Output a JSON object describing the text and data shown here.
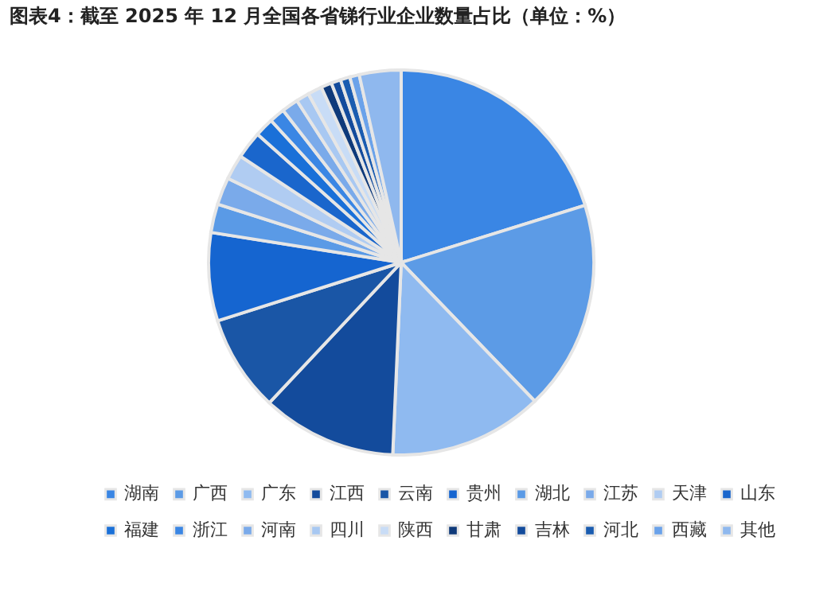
{
  "chart_data": {
    "type": "pie",
    "title": "图表4：截至 2025 年 12 月全国各省锑行业企业数量占比（单位：%）",
    "categories": [
      "湖南",
      "广西",
      "广东",
      "江西",
      "云南",
      "贵州",
      "湖北",
      "江苏",
      "天津",
      "山东",
      "福建",
      "浙江",
      "河南",
      "四川",
      "陕西",
      "甘肃",
      "吉林",
      "河北",
      "西藏",
      "其他"
    ],
    "values": [
      20.2,
      17.6,
      12.9,
      11.3,
      8.1,
      7.4,
      2.4,
      2.3,
      2.1,
      2.3,
      1.6,
      1.3,
      1.4,
      1.1,
      1.2,
      0.9,
      0.8,
      0.8,
      0.8,
      3.5
    ],
    "colors": [
      "#3a86e4",
      "#5c9be6",
      "#8fbaf0",
      "#134b9c",
      "#1a56a6",
      "#1565d0",
      "#5a9ae6",
      "#7aaaea",
      "#b0ccf2",
      "#1a66cc",
      "#1a70d8",
      "#3a86e4",
      "#7aaaea",
      "#a8c8f2",
      "#c8dcf6",
      "#0f3a7a",
      "#134b9c",
      "#1a5cb0",
      "#6aa2ea",
      "#8fb8ee"
    ],
    "legend": "bottom"
  }
}
